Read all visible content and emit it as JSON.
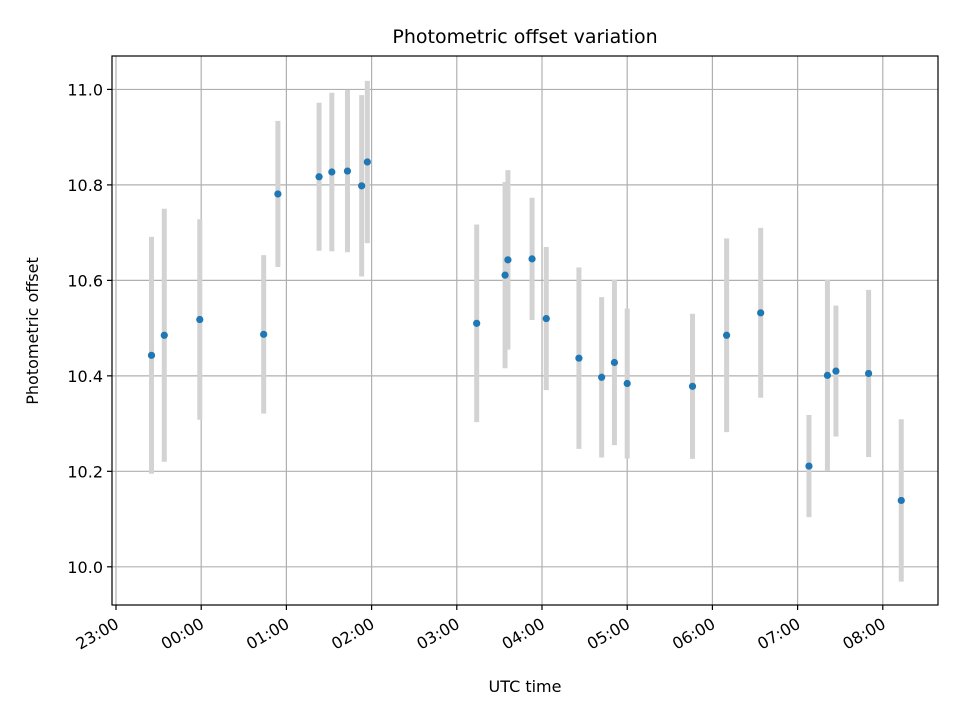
{
  "chart_data": {
    "type": "scatter",
    "title": "Photometric offset variation",
    "xlabel": "UTC time",
    "ylabel": "Photometric offset",
    "x_tick_labels": [
      "23:00",
      "00:00",
      "01:00",
      "02:00",
      "03:00",
      "04:00",
      "05:00",
      "06:00",
      "07:00",
      "08:00"
    ],
    "y_ticks": [
      10.0,
      10.2,
      10.4,
      10.6,
      10.8,
      11.0
    ],
    "y_tick_labels": [
      "10.0",
      "10.2",
      "10.4",
      "10.6",
      "10.8",
      "11.0"
    ],
    "ylim": [
      9.92,
      11.07
    ],
    "grid": true,
    "marker_color": "#1f77b4",
    "errorbar_color": "#d3d3d3",
    "points": [
      {
        "time": "23:25",
        "y": 10.443,
        "err": 0.248
      },
      {
        "time": "23:34",
        "y": 10.485,
        "err": 0.265
      },
      {
        "time": "23:59",
        "y": 10.518,
        "err": 0.21
      },
      {
        "time": "00:44",
        "y": 10.487,
        "err": 0.166
      },
      {
        "time": "00:54",
        "y": 10.781,
        "err": 0.153
      },
      {
        "time": "01:23",
        "y": 10.817,
        "err": 0.155
      },
      {
        "time": "01:32",
        "y": 10.827,
        "err": 0.166
      },
      {
        "time": "01:43",
        "y": 10.829,
        "err": 0.17
      },
      {
        "time": "01:53",
        "y": 10.798,
        "err": 0.19
      },
      {
        "time": "01:57",
        "y": 10.848,
        "err": 0.17
      },
      {
        "time": "03:14",
        "y": 10.51,
        "err": 0.207
      },
      {
        "time": "03:34",
        "y": 10.611,
        "err": 0.195
      },
      {
        "time": "03:36",
        "y": 10.643,
        "err": 0.188
      },
      {
        "time": "03:53",
        "y": 10.645,
        "err": 0.128
      },
      {
        "time": "04:03",
        "y": 10.52,
        "err": 0.15
      },
      {
        "time": "04:26",
        "y": 10.437,
        "err": 0.19
      },
      {
        "time": "04:42",
        "y": 10.397,
        "err": 0.168
      },
      {
        "time": "04:51",
        "y": 10.428,
        "err": 0.173
      },
      {
        "time": "05:00",
        "y": 10.384,
        "err": 0.157
      },
      {
        "time": "05:46",
        "y": 10.378,
        "err": 0.152
      },
      {
        "time": "06:10",
        "y": 10.485,
        "err": 0.203
      },
      {
        "time": "06:34",
        "y": 10.532,
        "err": 0.178
      },
      {
        "time": "07:08",
        "y": 10.211,
        "err": 0.107
      },
      {
        "time": "07:21",
        "y": 10.401,
        "err": 0.2
      },
      {
        "time": "07:27",
        "y": 10.41,
        "err": 0.137
      },
      {
        "time": "07:50",
        "y": 10.405,
        "err": 0.175
      },
      {
        "time": "08:13",
        "y": 10.139,
        "err": 0.17
      }
    ]
  }
}
